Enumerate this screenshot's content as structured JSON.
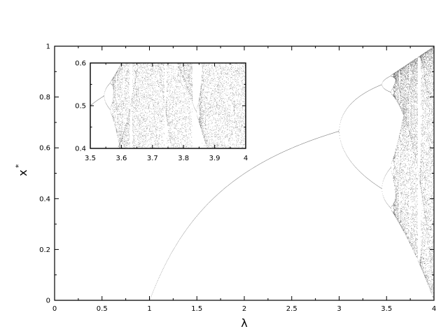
{
  "chart_data": [
    {
      "type": "scatter",
      "name": "main",
      "title": "",
      "xlabel": "λ",
      "ylabel": "x",
      "ylabel_superscript": "*",
      "xlim": [
        0,
        4
      ],
      "ylim": [
        0,
        1
      ],
      "xticks": [
        "0",
        "0.5",
        "1",
        "1.5",
        "2",
        "2.5",
        "3",
        "3.5",
        "4"
      ],
      "yticks": [
        "0",
        "0.2",
        "0.4",
        "0.6",
        "0.8",
        "1"
      ],
      "grid": false,
      "legend": "none",
      "series": [
        {
          "x_range": [
            0,
            4
          ],
          "map": "logistic",
          "r_first_nonzero": 1.0,
          "period_2_onset": 3.0,
          "period_4_onset": 3.449,
          "chaos_onset": 3.57,
          "period_3_window": [
            3.828,
            3.857
          ]
        }
      ],
      "colors": {
        "points": "#000000",
        "frame": "#000000"
      }
    },
    {
      "type": "scatter",
      "name": "inset",
      "xlim": [
        3.5,
        4
      ],
      "ylim": [
        0.4,
        0.6
      ],
      "xticks": [
        "3.5",
        "3.6",
        "3.7",
        "3.8",
        "3.9",
        "4"
      ],
      "yticks": [
        "0.4",
        "0.5",
        "0.6"
      ],
      "grid": false
    }
  ]
}
